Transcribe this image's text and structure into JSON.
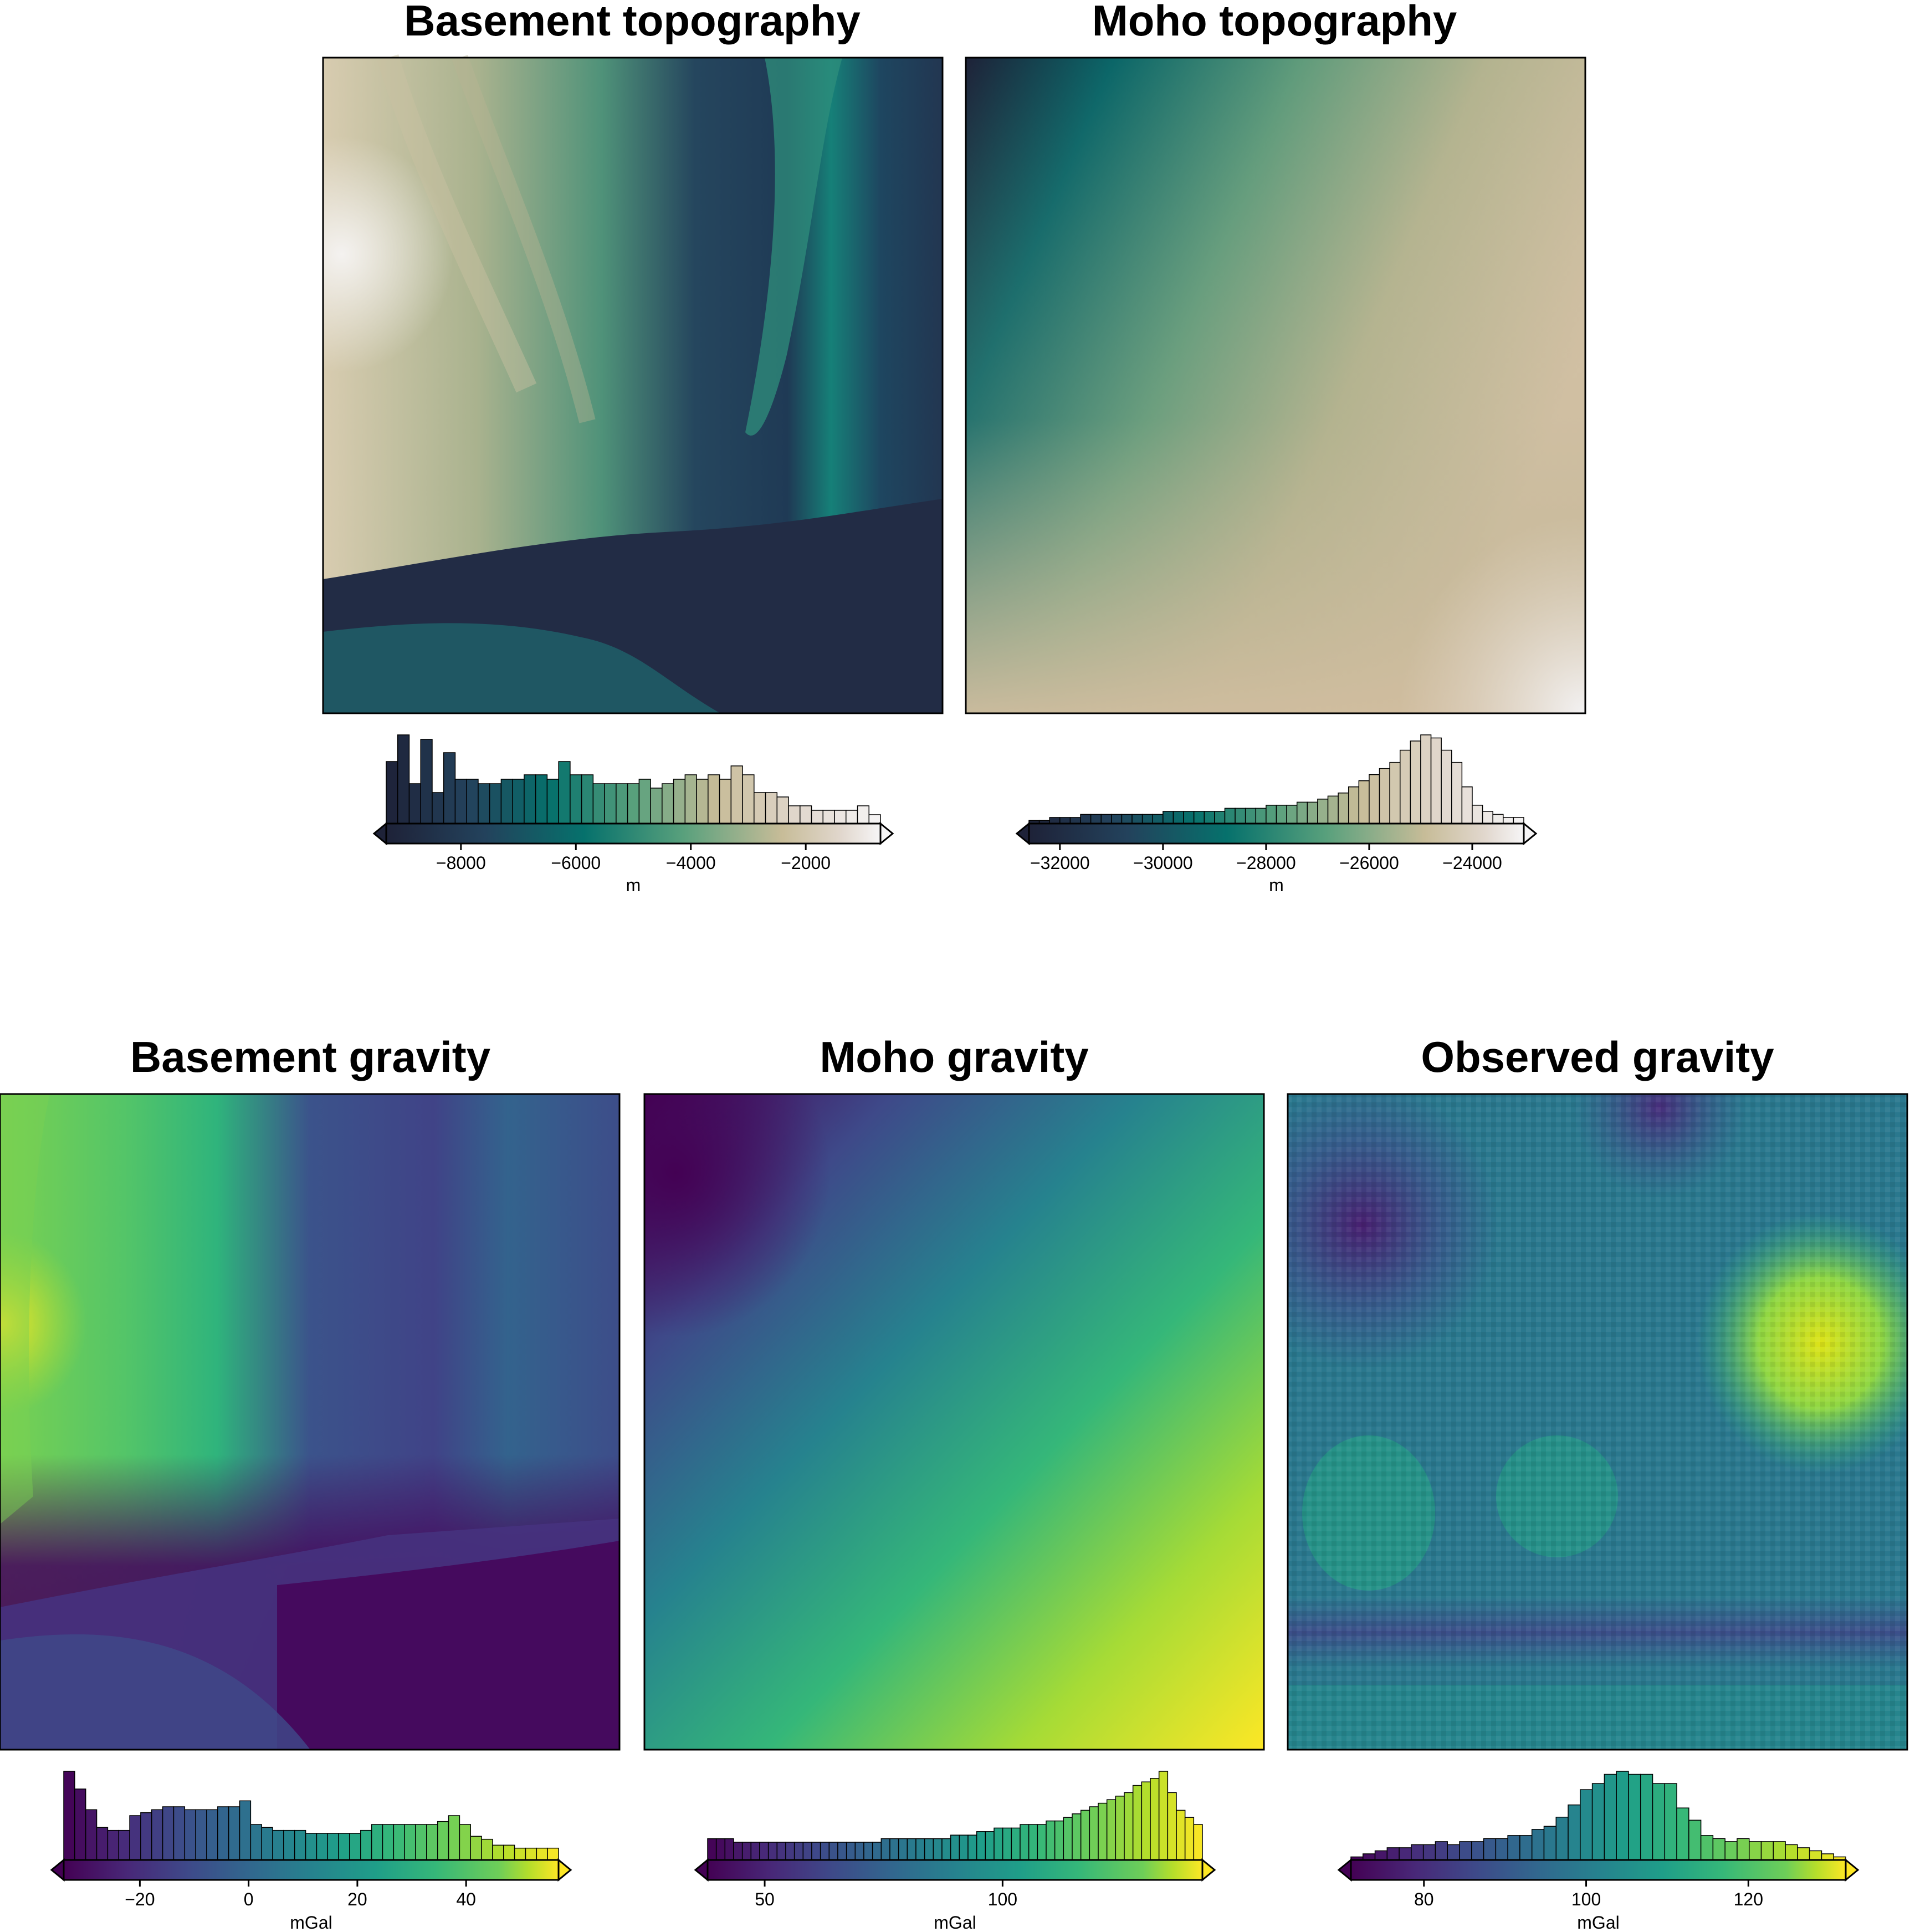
{
  "figure": {
    "panels": [
      {
        "id": "basement-topo",
        "title": "Basement topography",
        "colormap": "rain",
        "unit": "m"
      },
      {
        "id": "moho-topo",
        "title": "Moho topography",
        "colormap": "rain",
        "unit": "m"
      },
      {
        "id": "basement-grav",
        "title": "Basement gravity",
        "colormap": "viridis",
        "unit": "mGal"
      },
      {
        "id": "moho-grav",
        "title": "Moho gravity",
        "colormap": "viridis",
        "unit": "mGal"
      },
      {
        "id": "obs-grav",
        "title": "Observed gravity",
        "colormap": "viridis",
        "unit": "mGal"
      }
    ]
  },
  "chart_data": [
    {
      "type": "heatmap",
      "title": "Basement topography",
      "colorbar": {
        "label": "m",
        "range": [
          -9300,
          -700
        ],
        "ticks": [
          -8000,
          -6000,
          -4000,
          -2000
        ],
        "tick_labels": [
          "−8000",
          "−6000",
          "−4000",
          "−2000"
        ]
      },
      "histogram": {
        "counts": [
          14,
          20,
          9,
          19,
          7,
          16,
          10,
          10,
          9,
          9,
          10,
          10,
          11,
          11,
          10,
          14,
          11,
          11,
          9,
          9,
          9,
          9,
          10,
          8,
          9,
          10,
          11,
          10,
          11,
          10,
          13,
          11,
          7,
          7,
          6,
          4,
          4,
          3,
          3,
          3,
          3,
          4,
          2
        ]
      }
    },
    {
      "type": "heatmap",
      "title": "Moho topography",
      "colorbar": {
        "label": "m",
        "range": [
          -32600,
          -23000
        ],
        "ticks": [
          -32000,
          -30000,
          -28000,
          -26000,
          -24000
        ],
        "tick_labels": [
          "−32000",
          "−30000",
          "−28000",
          "−26000",
          "−24000"
        ]
      },
      "histogram": {
        "counts": [
          1,
          1,
          2,
          2,
          2,
          3,
          3,
          3,
          3,
          3,
          3,
          3,
          3,
          4,
          4,
          4,
          4,
          4,
          4,
          5,
          5,
          5,
          5,
          6,
          6,
          6,
          7,
          7,
          8,
          9,
          10,
          12,
          14,
          16,
          18,
          20,
          24,
          27,
          29,
          28,
          24,
          20,
          12,
          6,
          4,
          3,
          2,
          2
        ]
      }
    },
    {
      "type": "heatmap",
      "title": "Basement gravity",
      "colorbar": {
        "label": "mGal",
        "range": [
          -34,
          57
        ],
        "ticks": [
          -20,
          0,
          20,
          40
        ],
        "tick_labels": [
          "−20",
          "0",
          "20",
          "40"
        ]
      },
      "histogram": {
        "counts": [
          30,
          24,
          17,
          11,
          10,
          10,
          15,
          16,
          17,
          18,
          18,
          17,
          17,
          17,
          18,
          18,
          20,
          12,
          11,
          10,
          10,
          10,
          9,
          9,
          9,
          9,
          9,
          10,
          12,
          12,
          12,
          12,
          12,
          12,
          13,
          15,
          12,
          8,
          7,
          5,
          5,
          4,
          4,
          4,
          4
        ]
      }
    },
    {
      "type": "heatmap",
      "title": "Moho gravity",
      "colorbar": {
        "label": "mGal",
        "range": [
          38,
          142
        ],
        "ticks": [
          50,
          100
        ],
        "tick_labels": [
          "50",
          "100"
        ]
      },
      "histogram": {
        "counts": [
          6,
          6,
          6,
          5,
          5,
          5,
          5,
          5,
          5,
          5,
          5,
          5,
          5,
          5,
          5,
          5,
          5,
          5,
          5,
          5,
          6,
          6,
          6,
          6,
          6,
          6,
          6,
          6,
          7,
          7,
          7,
          8,
          8,
          9,
          9,
          9,
          10,
          10,
          10,
          11,
          11,
          12,
          13,
          14,
          15,
          16,
          17,
          18,
          19,
          21,
          22,
          23,
          25,
          19,
          14,
          12,
          10
        ]
      }
    },
    {
      "type": "heatmap",
      "title": "Observed gravity",
      "colorbar": {
        "label": "mGal",
        "range": [
          71,
          132
        ],
        "ticks": [
          80,
          100,
          120
        ],
        "tick_labels": [
          "80",
          "100",
          "120"
        ]
      },
      "histogram": {
        "counts": [
          1,
          2,
          3,
          4,
          4,
          5,
          5,
          6,
          5,
          6,
          6,
          7,
          7,
          8,
          8,
          10,
          11,
          14,
          18,
          23,
          25,
          28,
          29,
          28,
          28,
          25,
          25,
          17,
          13,
          8,
          7,
          6,
          7,
          6,
          6,
          6,
          5,
          4,
          3,
          2,
          1
        ]
      }
    }
  ]
}
